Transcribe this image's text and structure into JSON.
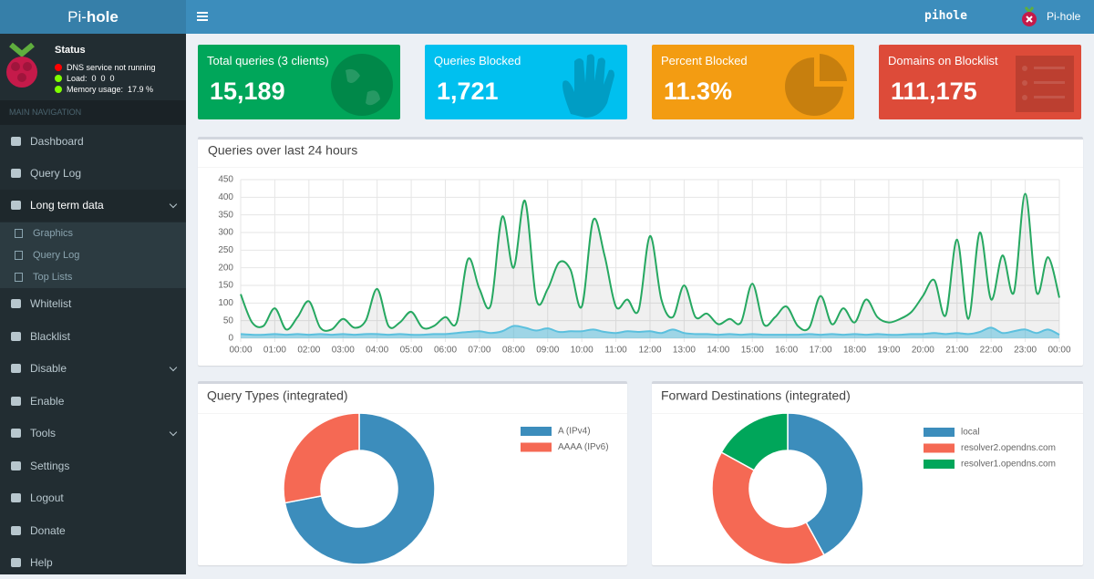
{
  "header": {
    "logo_light": "Pi-",
    "logo_bold": "hole",
    "hostname": "pihole",
    "user": "Pi-hole"
  },
  "sidebar": {
    "status_title": "Status",
    "status": [
      "DNS service not running",
      "Load:  0  0  0",
      "Memory usage:  17.9 %"
    ],
    "nav_header": "MAIN NAVIGATION",
    "menu": [
      "Dashboard",
      "Query Log",
      "Long term data",
      "Whitelist",
      "Blacklist",
      "Disable",
      "Enable",
      "Tools",
      "Settings",
      "Logout",
      "Donate",
      "Help"
    ],
    "submenu": [
      "Graphics",
      "Query Log",
      "Top Lists"
    ]
  },
  "stats": [
    {
      "label": "Total queries (3 clients)",
      "value": "15,189",
      "color": "#00a65a"
    },
    {
      "label": "Queries Blocked",
      "value": "1,721",
      "color": "#00c0ef"
    },
    {
      "label": "Percent Blocked",
      "value": "11.3%",
      "color": "#f39c12"
    },
    {
      "label": "Domains on Blocklist",
      "value": "111,175",
      "color": "#dd4b39"
    }
  ],
  "chart_data": [
    {
      "type": "line",
      "title": "Queries over last 24 hours",
      "x": [
        0,
        20,
        40,
        60,
        80,
        100,
        120,
        140,
        160,
        180,
        200,
        220,
        240,
        260,
        280,
        300,
        320,
        340,
        360,
        380,
        400,
        420,
        440,
        460,
        480,
        500,
        520,
        540,
        560,
        580,
        600,
        620,
        640,
        660,
        680,
        700,
        720,
        740,
        760,
        780,
        800,
        820,
        840,
        860,
        880,
        900,
        920,
        940,
        960,
        980,
        1000,
        1020,
        1040,
        1060,
        1080,
        1100,
        1120,
        1140,
        1160,
        1180,
        1200,
        1220,
        1240,
        1260,
        1280,
        1300,
        1320,
        1340,
        1360,
        1380,
        1400,
        1420,
        1440
      ],
      "xlim": [
        0,
        1440
      ],
      "xticks": [
        {
          "value": 0,
          "label": "00:00"
        },
        {
          "value": 60,
          "label": "01:00"
        },
        {
          "value": 120,
          "label": "02:00"
        },
        {
          "value": 180,
          "label": "03:00"
        },
        {
          "value": 240,
          "label": "04:00"
        },
        {
          "value": 300,
          "label": "05:00"
        },
        {
          "value": 360,
          "label": "06:00"
        },
        {
          "value": 420,
          "label": "07:00"
        },
        {
          "value": 480,
          "label": "08:00"
        },
        {
          "value": 540,
          "label": "09:00"
        },
        {
          "value": 600,
          "label": "10:00"
        },
        {
          "value": 660,
          "label": "11:00"
        },
        {
          "value": 720,
          "label": "12:00"
        },
        {
          "value": 780,
          "label": "13:00"
        },
        {
          "value": 840,
          "label": "14:00"
        },
        {
          "value": 900,
          "label": "15:00"
        },
        {
          "value": 960,
          "label": "16:00"
        },
        {
          "value": 1020,
          "label": "17:00"
        },
        {
          "value": 1080,
          "label": "18:00"
        },
        {
          "value": 1140,
          "label": "19:00"
        },
        {
          "value": 1200,
          "label": "20:00"
        },
        {
          "value": 1260,
          "label": "21:00"
        },
        {
          "value": 1320,
          "label": "22:00"
        },
        {
          "value": 1380,
          "label": "23:00"
        },
        {
          "value": 1440,
          "label": "00:00"
        }
      ],
      "ylim": [
        0,
        450
      ],
      "yticks": [
        0,
        50,
        100,
        150,
        200,
        250,
        300,
        350,
        400,
        450
      ],
      "grid": true,
      "series": [
        {
          "color": "#26a861",
          "fill": "rgba(0,0,0,0.06)",
          "values": [
            125,
            45,
            35,
            85,
            25,
            60,
            105,
            30,
            25,
            55,
            30,
            50,
            140,
            35,
            45,
            75,
            30,
            35,
            60,
            45,
            225,
            140,
            95,
            345,
            200,
            390,
            110,
            140,
            215,
            195,
            90,
            335,
            235,
            90,
            110,
            80,
            290,
            110,
            60,
            150,
            60,
            70,
            40,
            55,
            45,
            155,
            40,
            60,
            90,
            35,
            30,
            120,
            40,
            85,
            45,
            110,
            60,
            45,
            55,
            75,
            120,
            165,
            65,
            280,
            55,
            300,
            110,
            235,
            130,
            410,
            130,
            230,
            115
          ]
        },
        {
          "color": "#5bc0de",
          "fill": "rgba(91,192,222,0.55)",
          "values": [
            12,
            10,
            10,
            12,
            10,
            12,
            10,
            12,
            10,
            12,
            10,
            12,
            12,
            10,
            12,
            10,
            10,
            12,
            12,
            15,
            18,
            20,
            15,
            20,
            35,
            30,
            22,
            28,
            18,
            20,
            20,
            25,
            18,
            15,
            20,
            18,
            20,
            15,
            25,
            15,
            12,
            12,
            10,
            12,
            10,
            12,
            10,
            10,
            10,
            10,
            12,
            10,
            12,
            10,
            12,
            10,
            12,
            10,
            10,
            12,
            12,
            15,
            12,
            15,
            12,
            18,
            30,
            15,
            20,
            25,
            15,
            25,
            10
          ]
        }
      ]
    },
    {
      "type": "doughnut",
      "title": "Query Types (integrated)",
      "categories": [
        "A (IPv4)",
        "AAAA (IPv6)"
      ],
      "values": [
        72,
        28
      ],
      "colors": [
        "#3c8dbc",
        "#f56954"
      ]
    },
    {
      "type": "doughnut",
      "title": "Forward Destinations (integrated)",
      "categories": [
        "local",
        "resolver2.opendns.com",
        "resolver1.opendns.com"
      ],
      "values": [
        42,
        41,
        17
      ],
      "colors": [
        "#3c8dbc",
        "#f56954",
        "#00a65a"
      ]
    }
  ]
}
